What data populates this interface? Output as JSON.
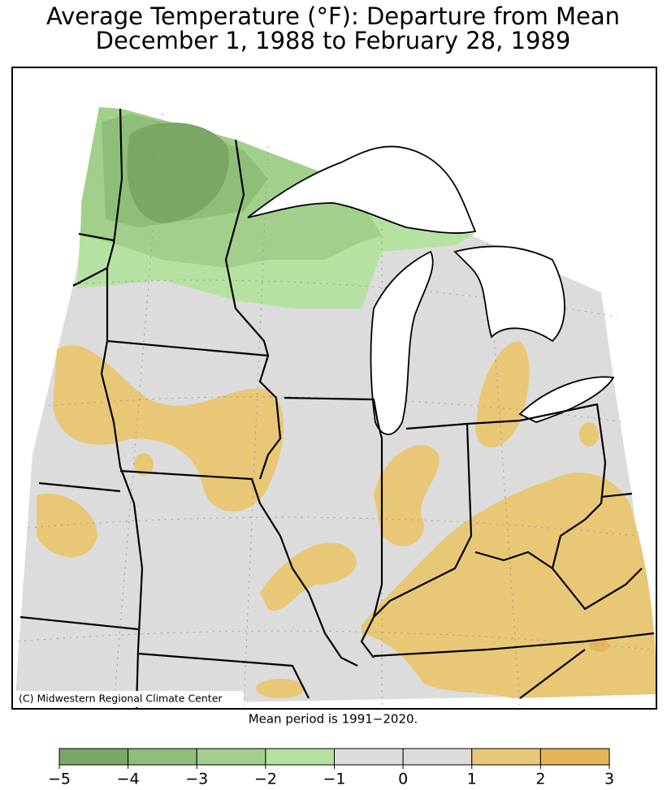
{
  "title": [
    "Average Temperature (°F): Departure from Mean",
    "December 1, 1988 to February 28, 1989"
  ],
  "credit": "(C) Midwestern Regional Climate Center",
  "note": "Mean period is 1991−2020.",
  "legend": {
    "ticks": [
      {
        "value": -5,
        "label": "−5"
      },
      {
        "value": -4,
        "label": "−4"
      },
      {
        "value": -3,
        "label": "−3"
      },
      {
        "value": -2,
        "label": "−2"
      },
      {
        "value": -1,
        "label": "−1"
      },
      0,
      1,
      2,
      3
    ],
    "colors": [
      "#7ba766",
      "#8fbe78",
      "#a2d08c",
      "#b5e2a2",
      "#dcdcdc",
      "#dcdcdc",
      "#e8c776",
      "#e8b458"
    ]
  }
}
